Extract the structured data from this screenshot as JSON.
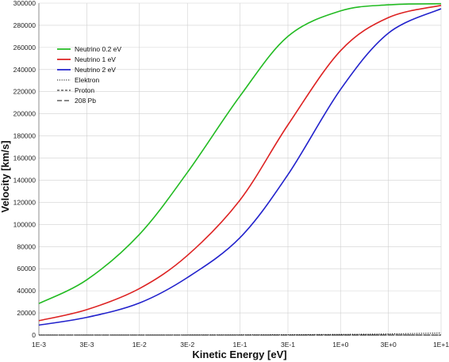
{
  "chart_data": {
    "type": "line",
    "x_scale": "log",
    "xlabel": "Kinetic Energy [eV]",
    "ylabel": "Velocity [km/s]",
    "xlim": [
      0.001,
      10
    ],
    "ylim": [
      0,
      300000
    ],
    "x_tick_values": [
      0.001,
      0.003,
      0.01,
      0.03,
      0.1,
      0.3,
      1,
      3,
      10
    ],
    "x_tick_labels": [
      "1E-3",
      "3E-3",
      "1E-2",
      "3E-2",
      "1E-1",
      "3E-1",
      "1E+0",
      "3E+0",
      "1E+1"
    ],
    "y_tick_values": [
      0,
      20000,
      40000,
      60000,
      80000,
      100000,
      120000,
      140000,
      160000,
      180000,
      200000,
      220000,
      240000,
      260000,
      280000,
      300000
    ],
    "y_tick_labels": [
      "0",
      "20000",
      "40000",
      "60000",
      "80000",
      "100000",
      "120000",
      "140000",
      "160000",
      "180000",
      "200000",
      "220000",
      "240000",
      "260000",
      "280000",
      "300000"
    ],
    "grid": true,
    "legend_position": "top-left",
    "series": [
      {
        "name": "Neutrino 0.2 eV",
        "color": "#22bb22",
        "dash": "solid",
        "x": [
          0.001,
          0.003,
          0.01,
          0.03,
          0.1,
          0.3,
          1,
          3,
          10
        ],
        "y": [
          28500,
          50000,
          91000,
          147000,
          216000,
          270000,
          293000,
          298500,
          299500
        ]
      },
      {
        "name": "Neutrino 1 eV",
        "color": "#dd2222",
        "dash": "solid",
        "x": [
          0.001,
          0.003,
          0.01,
          0.03,
          0.1,
          0.3,
          1,
          3,
          10
        ],
        "y": [
          13000,
          23000,
          42000,
          72000,
          122000,
          190000,
          257000,
          287000,
          298000
        ]
      },
      {
        "name": "Neutrino 2 eV",
        "color": "#2222cc",
        "dash": "solid",
        "x": [
          0.001,
          0.003,
          0.01,
          0.03,
          0.1,
          0.3,
          1,
          3,
          10
        ],
        "y": [
          9000,
          16000,
          29000,
          52000,
          88000,
          145000,
          222000,
          273000,
          295000
        ]
      },
      {
        "name": "Elektron",
        "color": "#111111",
        "dash": "dotted",
        "x": [
          0.001,
          0.01,
          0.1,
          1,
          3,
          10
        ],
        "y": [
          19,
          59,
          188,
          593,
          1027,
          1875
        ]
      },
      {
        "name": "Proton",
        "color": "#111111",
        "dash": "dashed",
        "x": [
          0.001,
          0.01,
          0.1,
          1,
          10
        ],
        "y": [
          0.44,
          1.4,
          4.4,
          14,
          44
        ]
      },
      {
        "name": "208 Pb",
        "color": "#111111",
        "dash": "longdash",
        "x": [
          0.001,
          0.01,
          0.1,
          1,
          10
        ],
        "y": [
          0.03,
          0.1,
          0.3,
          1,
          3
        ]
      }
    ]
  }
}
